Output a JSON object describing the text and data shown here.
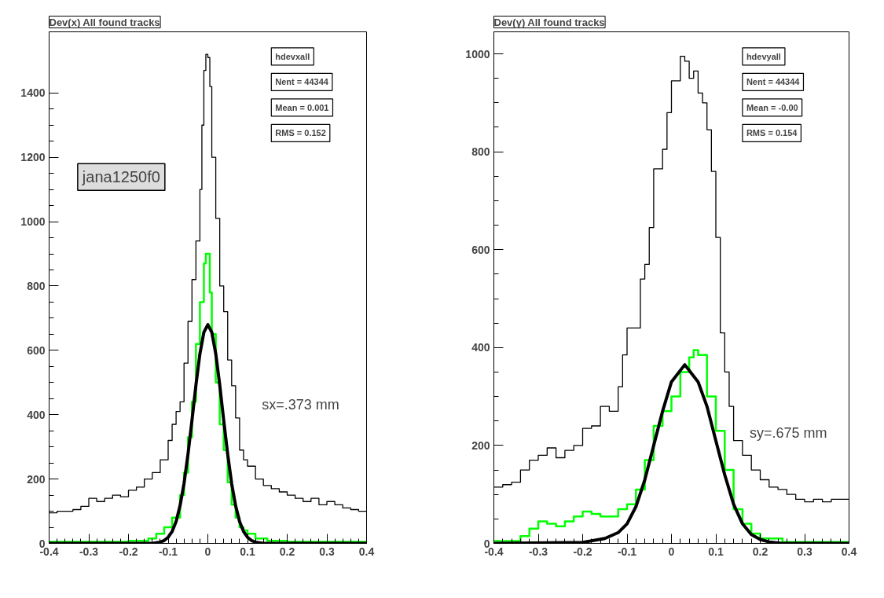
{
  "chart_data": [
    {
      "type": "step",
      "title": "Dev(x) All found tracks",
      "annotations": [
        "hdevxall",
        "Nent = 44344",
        "Mean = 0.001",
        "RMS = 0.152",
        "jana1250f0",
        "sx=.373 mm"
      ],
      "xlim": [
        -0.4,
        0.4
      ],
      "xticks": [
        -0.4,
        -0.3,
        -0.2,
        -0.1,
        0,
        0.1,
        0.2,
        0.3,
        0.4
      ],
      "ylim": [
        0,
        1590
      ],
      "yticks": [
        0,
        200,
        400,
        600,
        800,
        1000,
        1200,
        1400
      ],
      "grid": false,
      "series": [
        {
          "color": "#000000",
          "x": [
            -0.4,
            -0.38,
            -0.36,
            -0.34,
            -0.32,
            -0.3,
            -0.28,
            -0.26,
            -0.24,
            -0.22,
            -0.2,
            -0.18,
            -0.16,
            -0.14,
            -0.12,
            -0.1,
            -0.09,
            -0.08,
            -0.07,
            -0.06,
            -0.05,
            -0.04,
            -0.03,
            -0.02,
            -0.015,
            -0.01,
            -0.005,
            0,
            0.005,
            0.01,
            0.02,
            0.03,
            0.04,
            0.05,
            0.06,
            0.07,
            0.08,
            0.09,
            0.1,
            0.12,
            0.14,
            0.16,
            0.18,
            0.2,
            0.22,
            0.24,
            0.26,
            0.28,
            0.3,
            0.32,
            0.34,
            0.36,
            0.38,
            0.4
          ],
          "values": [
            95,
            100,
            100,
            105,
            115,
            140,
            130,
            140,
            150,
            145,
            165,
            175,
            200,
            220,
            260,
            320,
            370,
            410,
            440,
            560,
            690,
            820,
            940,
            1100,
            1300,
            1470,
            1520,
            1510,
            1420,
            1200,
            1010,
            800,
            720,
            570,
            490,
            390,
            290,
            260,
            240,
            200,
            180,
            170,
            160,
            150,
            140,
            130,
            140,
            120,
            130,
            120,
            110,
            105,
            100,
            100
          ]
        },
        {
          "color": "#00ff00",
          "x": [
            -0.4,
            -0.2,
            -0.15,
            -0.13,
            -0.11,
            -0.09,
            -0.07,
            -0.06,
            -0.05,
            -0.04,
            -0.03,
            -0.02,
            -0.01,
            -0.005,
            0.005,
            0.01,
            0.02,
            0.03,
            0.04,
            0.05,
            0.06,
            0.07,
            0.08,
            0.09,
            0.1,
            0.12,
            0.15,
            0.2,
            0.4
          ],
          "values": [
            5,
            8,
            15,
            30,
            50,
            80,
            150,
            220,
            330,
            440,
            620,
            750,
            870,
            900,
            780,
            650,
            500,
            370,
            290,
            190,
            120,
            80,
            50,
            40,
            30,
            15,
            8,
            5,
            5
          ]
        },
        {
          "type": "line",
          "color": "#000000",
          "x": [
            -0.4,
            -0.14,
            -0.12,
            -0.11,
            -0.1,
            -0.09,
            -0.08,
            -0.07,
            -0.06,
            -0.05,
            -0.04,
            -0.03,
            -0.02,
            -0.01,
            0,
            0.01,
            0.02,
            0.03,
            0.04,
            0.05,
            0.06,
            0.07,
            0.08,
            0.09,
            0.1,
            0.11,
            0.12,
            0.14,
            0.4
          ],
          "values": [
            0,
            0,
            4,
            9,
            19,
            37,
            68,
            117,
            186,
            277,
            382,
            492,
            589,
            656,
            680,
            656,
            589,
            492,
            382,
            277,
            186,
            117,
            68,
            37,
            19,
            9,
            4,
            0,
            0
          ]
        }
      ]
    },
    {
      "type": "step",
      "title": "Dev(y) All found tracks",
      "annotations": [
        "hdevyall",
        "Nent = 44344",
        "Mean = -0.00",
        "RMS = 0.154",
        "sy=.675 mm"
      ],
      "xlim": [
        -0.4,
        0.4
      ],
      "xticks": [
        -0.4,
        -0.3,
        -0.2,
        -0.1,
        0,
        0.1,
        0.2,
        0.3,
        0.4
      ],
      "ylim": [
        0,
        1045
      ],
      "yticks": [
        0,
        200,
        400,
        600,
        800,
        1000
      ],
      "grid": false,
      "series": [
        {
          "color": "#000000",
          "x": [
            -0.4,
            -0.38,
            -0.36,
            -0.34,
            -0.32,
            -0.3,
            -0.28,
            -0.26,
            -0.24,
            -0.22,
            -0.2,
            -0.18,
            -0.16,
            -0.14,
            -0.12,
            -0.11,
            -0.1,
            -0.07,
            -0.06,
            -0.05,
            -0.04,
            -0.02,
            -0.01,
            0,
            0.02,
            0.03,
            0.04,
            0.05,
            0.06,
            0.07,
            0.08,
            0.09,
            0.1,
            0.11,
            0.12,
            0.13,
            0.14,
            0.16,
            0.18,
            0.2,
            0.22,
            0.24,
            0.26,
            0.28,
            0.3,
            0.32,
            0.34,
            0.36,
            0.38,
            0.4
          ],
          "values": [
            115,
            120,
            125,
            150,
            170,
            180,
            195,
            175,
            190,
            200,
            235,
            240,
            280,
            270,
            320,
            385,
            440,
            540,
            570,
            645,
            765,
            805,
            880,
            945,
            995,
            985,
            950,
            965,
            920,
            900,
            845,
            760,
            625,
            430,
            350,
            280,
            210,
            180,
            150,
            130,
            115,
            110,
            100,
            90,
            85,
            90,
            85,
            90,
            90,
            90
          ]
        },
        {
          "color": "#00ff00",
          "x": [
            -0.4,
            -0.34,
            -0.32,
            -0.3,
            -0.28,
            -0.26,
            -0.24,
            -0.22,
            -0.2,
            -0.18,
            -0.16,
            -0.14,
            -0.12,
            -0.1,
            -0.08,
            -0.06,
            -0.04,
            -0.02,
            0,
            0.02,
            0.04,
            0.05,
            0.06,
            0.08,
            0.1,
            0.12,
            0.14,
            0.16,
            0.18,
            0.2,
            0.25,
            0.4
          ],
          "values": [
            5,
            15,
            30,
            45,
            40,
            35,
            45,
            55,
            65,
            60,
            55,
            55,
            70,
            80,
            110,
            170,
            240,
            270,
            300,
            350,
            380,
            395,
            385,
            300,
            230,
            150,
            70,
            40,
            20,
            10,
            3,
            3
          ]
        },
        {
          "type": "line",
          "color": "#000000",
          "x": [
            -0.4,
            -0.2,
            -0.15,
            -0.12,
            -0.1,
            -0.08,
            -0.06,
            -0.04,
            -0.02,
            0,
            0.03,
            0.06,
            0.08,
            0.1,
            0.12,
            0.14,
            0.16,
            0.18,
            0.2,
            0.22,
            0.25,
            0.4
          ],
          "values": [
            0,
            2,
            10,
            22,
            40,
            75,
            130,
            200,
            270,
            330,
            365,
            330,
            280,
            210,
            140,
            80,
            40,
            18,
            8,
            3,
            0,
            0
          ]
        }
      ]
    }
  ]
}
